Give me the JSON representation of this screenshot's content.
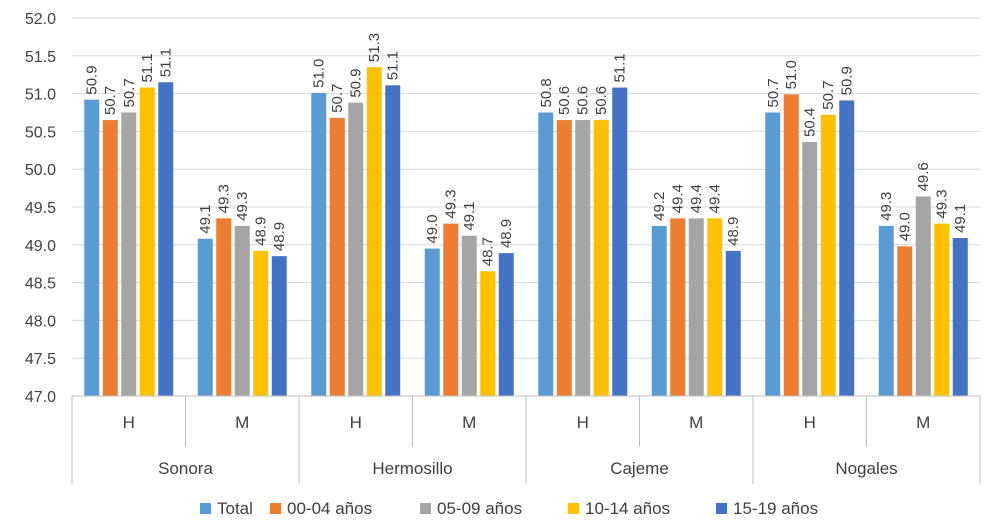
{
  "chart_data": {
    "type": "bar",
    "title": "",
    "xlabel": "",
    "ylabel": "",
    "ylim": [
      47.0,
      52.0
    ],
    "yticks": [
      "47.0",
      "47.5",
      "48.0",
      "48.5",
      "49.0",
      "49.5",
      "50.0",
      "50.5",
      "51.0",
      "51.5",
      "52.0"
    ],
    "grid": true,
    "legend_position": "bottom",
    "groups": [
      {
        "label": "Sonora",
        "categories": [
          "H",
          "M"
        ]
      },
      {
        "label": "Hermosillo",
        "categories": [
          "H",
          "M"
        ]
      },
      {
        "label": "Cajeme",
        "categories": [
          "H",
          "M"
        ]
      },
      {
        "label": "Nogales",
        "categories": [
          "H",
          "M"
        ]
      }
    ],
    "categories": [
      "H",
      "M",
      "H",
      "M",
      "H",
      "M",
      "H",
      "M"
    ],
    "series": [
      {
        "name": "Total",
        "color": "#5B9BD5",
        "values": [
          50.92,
          49.08,
          51.01,
          48.95,
          50.75,
          49.25,
          50.75,
          49.25
        ],
        "labels": [
          "50.9",
          "49.1",
          "51.0",
          "49.0",
          "50.8",
          "49.2",
          "50.7",
          "49.3"
        ]
      },
      {
        "name": "00-04 años",
        "color": "#ED7D31",
        "values": [
          50.65,
          49.35,
          50.68,
          49.28,
          50.65,
          49.35,
          50.99,
          48.98
        ],
        "labels": [
          "50.7",
          "49.3",
          "50.7",
          "49.3",
          "50.6",
          "49.4",
          "51.0",
          "49.0"
        ]
      },
      {
        "name": "05-09 años",
        "color": "#A5A5A5",
        "values": [
          50.75,
          49.25,
          50.88,
          49.12,
          50.65,
          49.35,
          50.36,
          49.64
        ],
        "labels": [
          "50.7",
          "49.3",
          "50.9",
          "49.1",
          "50.6",
          "49.4",
          "50.4",
          "49.6"
        ]
      },
      {
        "name": "10-14 años",
        "color": "#FFC000",
        "values": [
          51.08,
          48.92,
          51.35,
          48.65,
          50.65,
          49.35,
          50.72,
          49.28
        ],
        "labels": [
          "51.1",
          "48.9",
          "51.3",
          "48.7",
          "50.6",
          "49.4",
          "50.7",
          "49.3"
        ]
      },
      {
        "name": "15-19 años",
        "color": "#4472C4",
        "values": [
          51.15,
          48.85,
          51.11,
          48.89,
          51.08,
          48.92,
          50.91,
          49.09
        ],
        "labels": [
          "51.1",
          "48.9",
          "51.1",
          "48.9",
          "51.1",
          "48.9",
          "50.9",
          "49.1"
        ]
      }
    ]
  }
}
